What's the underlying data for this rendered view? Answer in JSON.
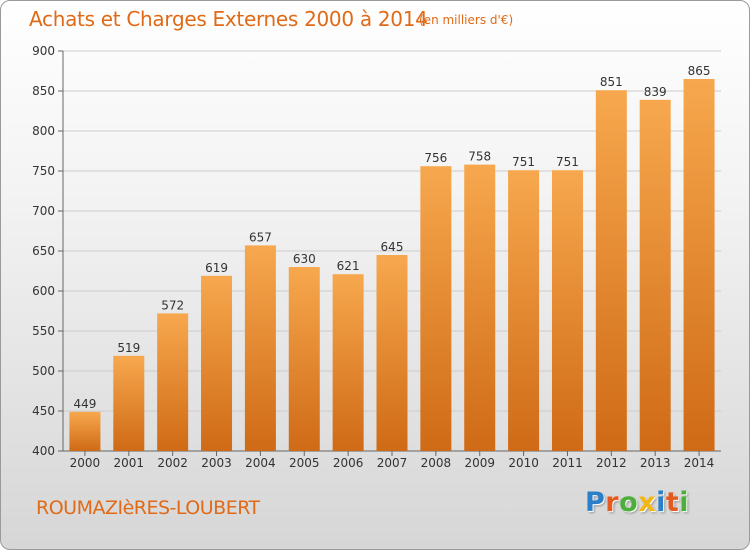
{
  "header": {
    "title": "Achats et Charges Externes 2000 à 2014",
    "subtitle": "(en milliers d'€)"
  },
  "footer": {
    "commune": "ROUMAZIèRES-LOUBERT",
    "logo": {
      "letters": [
        "P",
        "r",
        "o",
        "x",
        "i",
        "t",
        "i"
      ],
      "colors": [
        "#2a7fc9",
        "#e55a1f",
        "#4caf3a",
        "#f2b713",
        "#2a7fc9",
        "#e55a1f",
        "#4caf3a"
      ]
    }
  },
  "colors": {
    "accent": "#e06a17",
    "bar_top": "#f7a84e",
    "bar_bottom": "#cf6a16",
    "grid": "#cccccc"
  },
  "chart_data": {
    "type": "bar",
    "categories": [
      "2000",
      "2001",
      "2002",
      "2003",
      "2004",
      "2005",
      "2006",
      "2007",
      "2008",
      "2009",
      "2010",
      "2011",
      "2012",
      "2013",
      "2014"
    ],
    "values": [
      449,
      519,
      572,
      619,
      657,
      630,
      621,
      645,
      756,
      758,
      751,
      751,
      851,
      839,
      865
    ],
    "data_labels": [
      "449",
      "519",
      "572",
      "619",
      "657",
      "630",
      "621",
      "645",
      "756",
      "758",
      "751",
      "751",
      "851",
      "839",
      "865"
    ],
    "yticks": [
      400,
      450,
      500,
      550,
      600,
      650,
      700,
      750,
      800,
      850,
      900
    ],
    "ylim": [
      400,
      900
    ],
    "grid": true,
    "legend": "none"
  }
}
